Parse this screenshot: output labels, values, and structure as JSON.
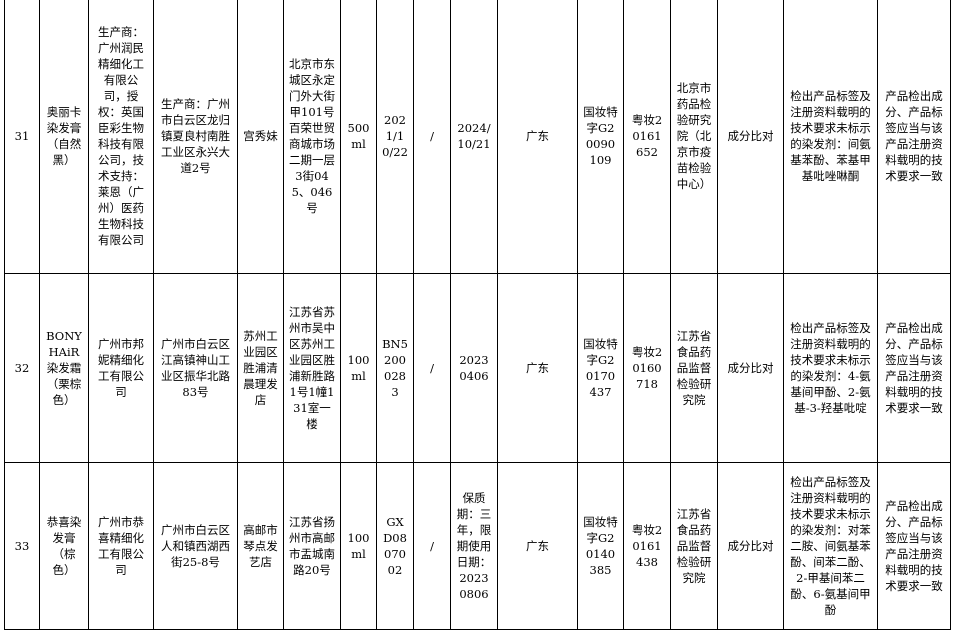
{
  "rows": [
    {
      "no": "31",
      "product": "奥丽卡染发膏（自然黑）",
      "manufacturer": "生产商：广州润民精细化工有限公司，授权：英国臣彩生物科技有限公司，技术支持：莱恩（广州）医药生物科技有限公司",
      "address": "生产商：广州市白云区龙归镇夏良村南胜工业区永兴大道2号",
      "seller": "宫秀妹",
      "seller_address": "北京市东城区永定门外大街甲101号百荣世贸商城市场二期一层3街045、046号",
      "spec": "500ml",
      "batch": "2021/10/22",
      "col8": "/",
      "date": "2024/10/21",
      "province": "广东",
      "approval": "国妆特字G20090109",
      "license": "粤妆20161652",
      "lab": "北京市药品检验研究院（北京市疫苗检验中心）",
      "method": "成分比对",
      "finding": "检出产品标签及注册资料载明的技术要求未标示的染发剂：间氨基苯酚、苯基甲基吡唑啉酮",
      "requirement": "产品检出成分、产品标签应当与该产品注册资料载明的技术要求一致"
    },
    {
      "no": "32",
      "product": "BONY HAiR染发霜（栗棕色）",
      "manufacturer": "广州市邦妮精细化工有限公司",
      "address": "广州市白云区江高镇神山工业区振华北路83号",
      "seller": "苏州工业园区胜浦清晨理发店",
      "seller_address": "江苏省苏州市吴中区苏州工业园区胜浦新胜路1号1幢131室一楼",
      "spec": "100ml",
      "batch": "BN52000283",
      "col8": "/",
      "date": "20230406",
      "province": "广东",
      "approval": "国妆特字G20170437",
      "license": "粤妆20160718",
      "lab": "江苏省食品药品监督检验研究院",
      "method": "成分比对",
      "finding": "检出产品标签及注册资料载明的技术要求未标示的染发剂：4-氨基间甲酚、2-氨基-3-羟基吡啶",
      "requirement": "产品检出成分、产品标签应当与该产品注册资料载明的技术要求一致"
    },
    {
      "no": "33",
      "product": "恭喜染发膏（棕色）",
      "manufacturer": "广州市恭喜精细化工有限公司",
      "address": "广州市白云区人和镇西湖西街25-8号",
      "seller": "高邮市琴点发艺店",
      "seller_address": "江苏省扬州市高邮市盂城南路20号",
      "spec": "100ml",
      "batch": "GXD0807002",
      "col8": "/",
      "date": "保质期：三年，限期使用日期：20230806",
      "province": "广东",
      "approval": "国妆特字G20140385",
      "license": "粤妆20161438",
      "lab": "江苏省食品药品监督检验研究院",
      "method": "成分比对",
      "finding": "检出产品标签及注册资料载明的技术要求未标示的染发剂：对苯二胺、间氨基苯酚、间苯二酚、2-甲基间苯二酚、6-氨基间甲酚",
      "requirement": "产品检出成分、产品标签应当与该产品注册资料载明的技术要求一致"
    }
  ]
}
